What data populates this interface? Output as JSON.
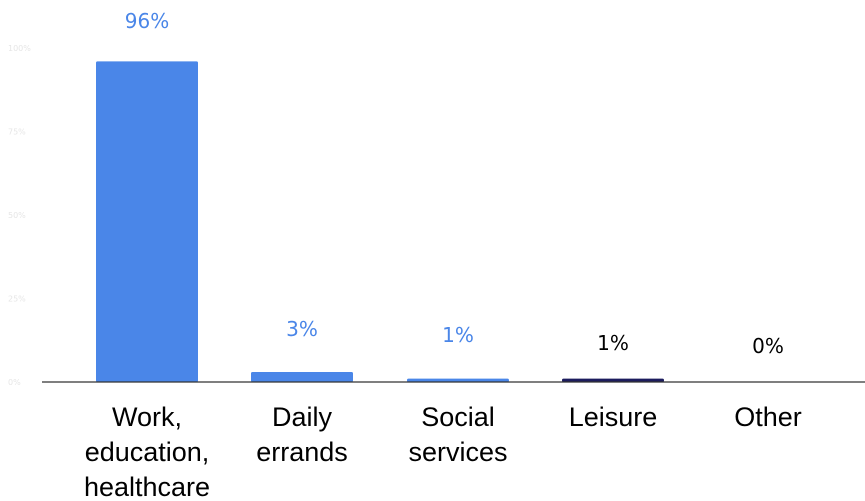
{
  "chart_data": {
    "type": "bar",
    "categories": [
      [
        "Work,",
        "education,",
        "healthcare"
      ],
      [
        "Daily",
        "errands"
      ],
      [
        "Social",
        "services"
      ],
      [
        "Leisure"
      ],
      [
        "Other"
      ]
    ],
    "values": [
      96,
      3,
      1,
      1,
      0
    ],
    "data_labels": [
      "96%",
      "3%",
      "1%",
      "1%",
      "0%"
    ],
    "bar_colors": [
      "#4a86e8",
      "#4a86e8",
      "#4a86e8",
      "#1c1c5e",
      "#4a86e8"
    ],
    "data_label_colors": [
      "#4a86e8",
      "#4a86e8",
      "#4a86e8",
      "#000000",
      "#000000"
    ],
    "y_ticks": [
      "0%",
      "25%",
      "50%",
      "75%",
      "100%"
    ],
    "y_tick_values": [
      0,
      25,
      50,
      75,
      100
    ],
    "ylim": [
      0,
      100
    ],
    "title": "",
    "xlabel": "",
    "ylabel": "",
    "grid": false,
    "legend": "none"
  }
}
